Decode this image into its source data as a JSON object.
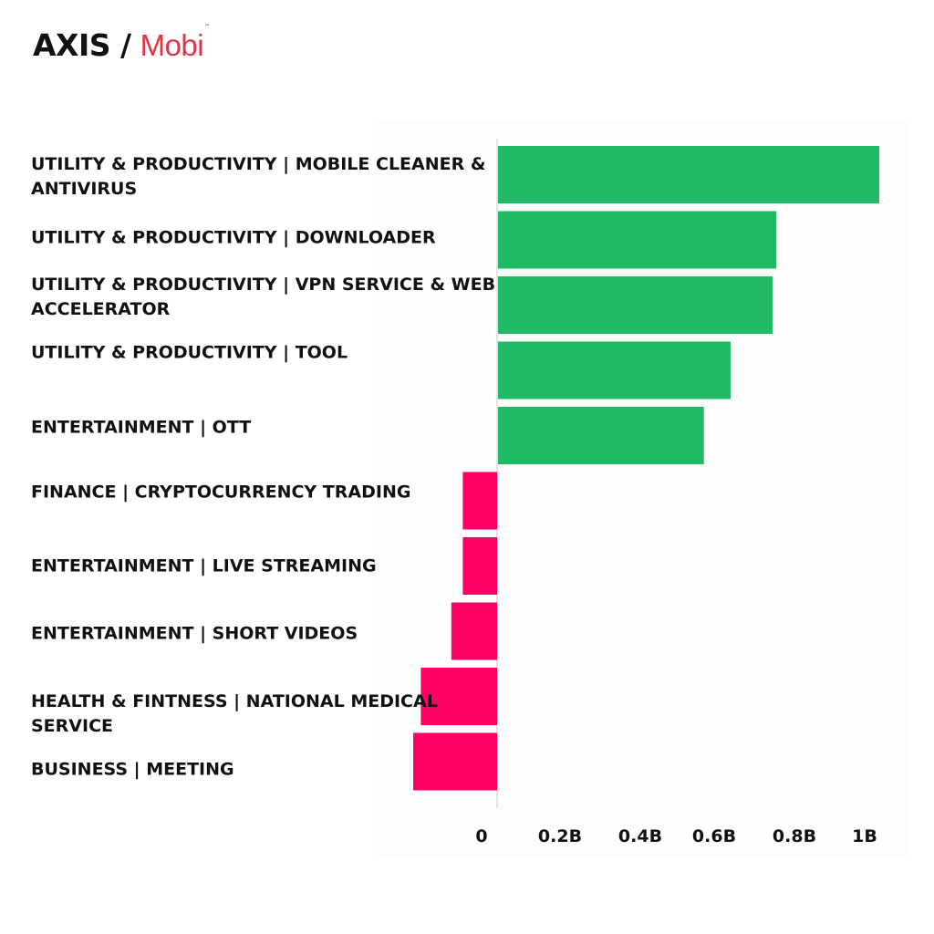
{
  "logo": {
    "part1": "AXIS /",
    "part2": "Mobi",
    "tm": "™"
  },
  "colors": {
    "positive": "#1fba63",
    "negative": "#ff0066",
    "brand_accent": "#e0344a"
  },
  "chart_data": {
    "type": "bar",
    "orientation": "horizontal",
    "categories": [
      "UTILITY & PRODUCTIVITY | MOBILE CLEANER & ANTIVIRUS",
      "UTILITY & PRODUCTIVITY | DOWNLOADER",
      "UTILITY & PRODUCTIVITY | VPN SERVICE & WEB ACCELERATOR",
      "UTILITY & PRODUCTIVITY | TOOL",
      "ENTERTAINMENT | OTT",
      "FINANCE | CRYPTOCURRENCY TRADING",
      "ENTERTAINMENT | LIVE STREAMING",
      "ENTERTAINMENT | SHORT VIDEOS",
      "HEALTH & FINTNESS | NATIONAL MEDICAL SERVICE",
      "BUSINESS | MEETING"
    ],
    "values": [
      1.0,
      0.73,
      0.72,
      0.61,
      0.54,
      -0.09,
      -0.09,
      -0.12,
      -0.2,
      -0.22
    ],
    "unit": "B",
    "xlim": [
      -0.22,
      1.0
    ],
    "x_ticks": [
      "0",
      "0.2B",
      "0.4B",
      "0.6B",
      "0.8B",
      "1B"
    ],
    "x_tick_values": [
      0,
      0.2,
      0.4,
      0.6,
      0.8,
      1.0
    ],
    "grid": false,
    "legend": "none"
  }
}
